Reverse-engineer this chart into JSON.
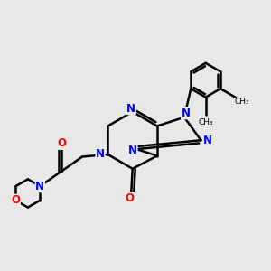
{
  "background_color": "#e8e8e8",
  "atom_color_N": "#0000ff",
  "atom_color_O": "#ff0000",
  "bond_color": "#000000",
  "line_width": 1.8,
  "font_size_atom": 8.5,
  "fig_width": 3.0,
  "fig_height": 3.0,
  "dpi": 100,
  "xlim": [
    0,
    10
  ],
  "ylim": [
    0,
    10
  ]
}
